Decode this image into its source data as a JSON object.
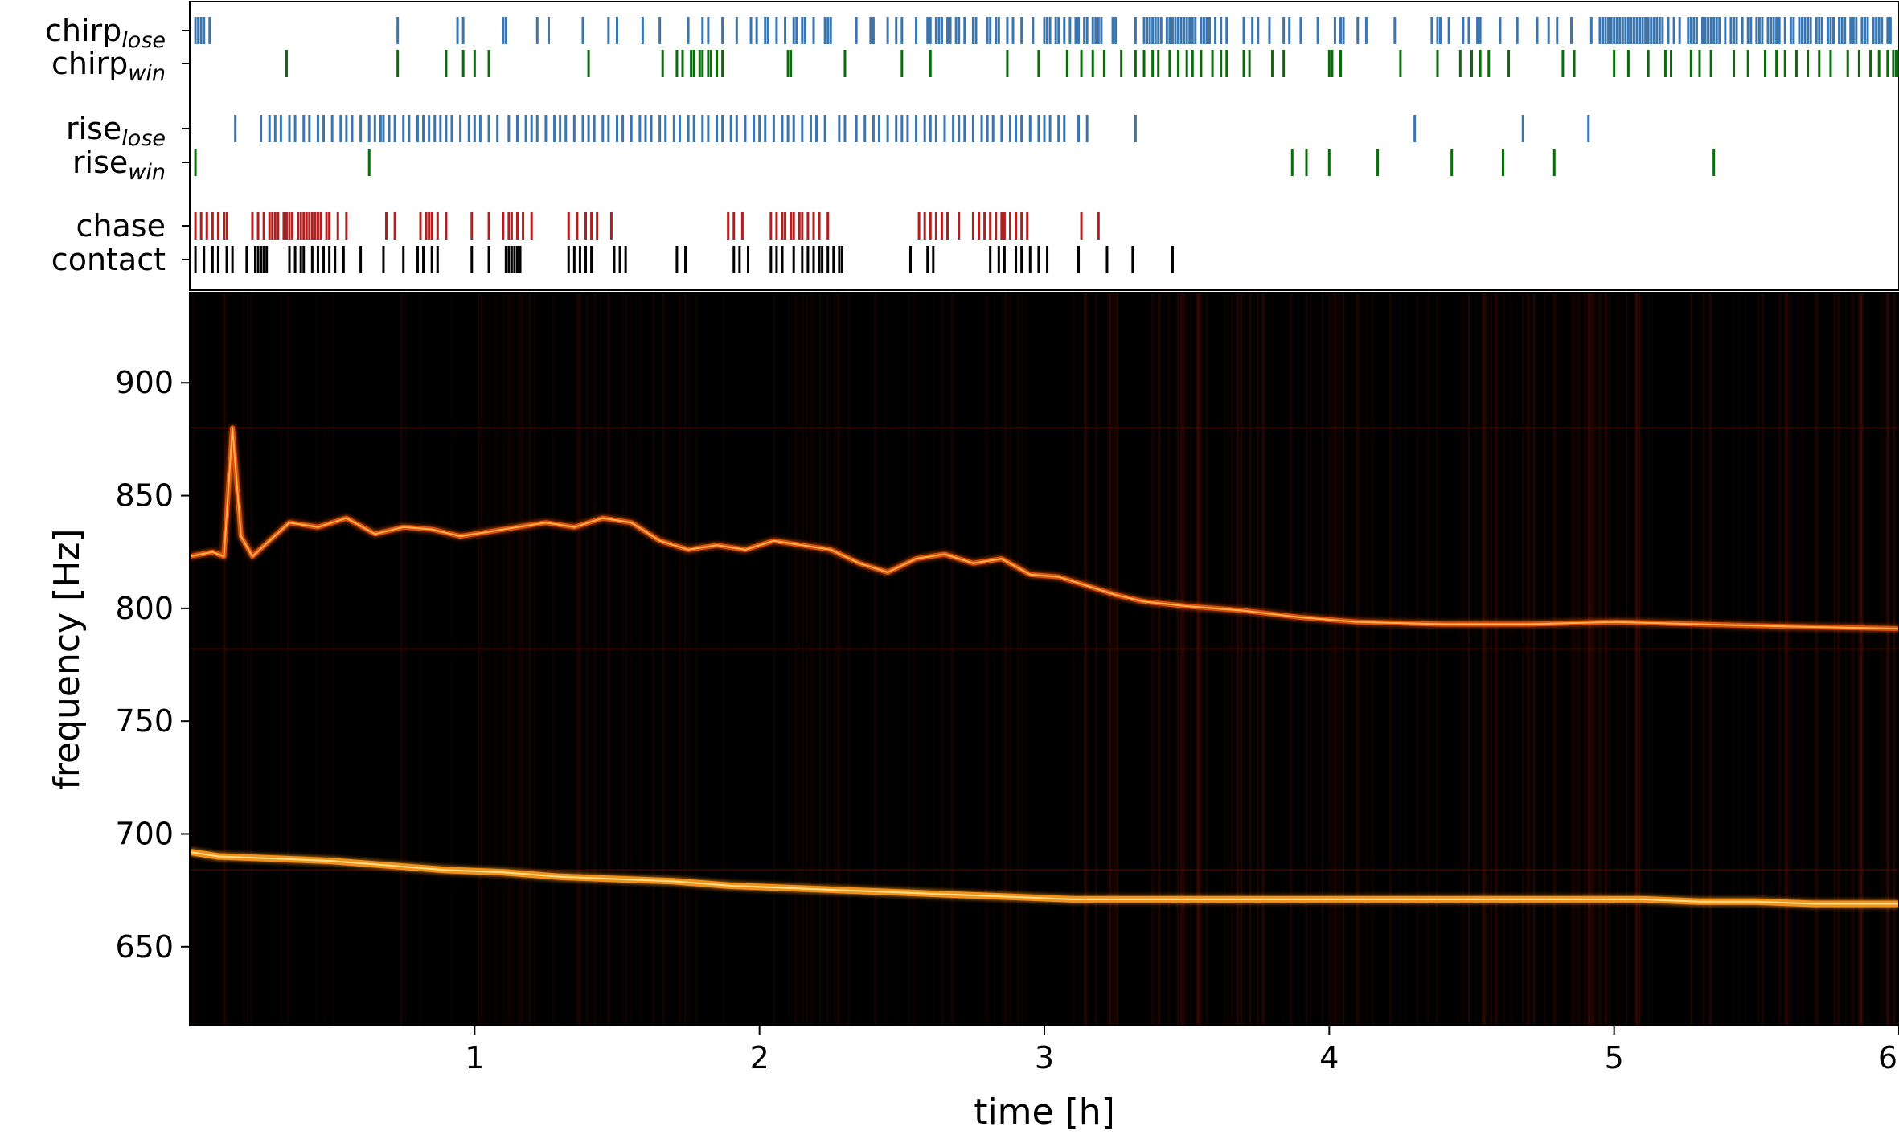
{
  "chart_data": [
    {
      "type": "scatter",
      "subtype": "event-raster",
      "xlim": [
        0,
        6
      ],
      "rows": [
        {
          "label": "chirp",
          "sub": "lose",
          "color": "#3a75b0",
          "events": [
            0.02,
            0.03,
            0.04,
            0.05,
            0.07,
            0.73,
            0.94,
            0.96,
            1.1,
            1.11,
            1.22,
            1.26,
            1.38,
            1.47,
            1.5,
            1.59,
            1.65,
            1.75,
            1.8,
            1.82,
            1.87,
            1.92,
            1.97,
            1.99,
            2.02,
            2.03,
            2.06,
            2.09,
            2.12,
            2.13,
            2.15,
            2.16,
            2.19,
            2.23,
            2.24,
            2.25,
            2.34,
            2.39,
            2.4,
            2.45,
            2.48,
            2.5,
            2.55,
            2.59,
            2.6,
            2.62,
            2.63,
            2.64,
            2.66,
            2.67,
            2.69,
            2.7,
            2.72,
            2.75,
            2.76,
            2.8,
            2.81,
            2.83,
            2.84,
            2.87,
            2.89,
            2.92,
            2.96,
            3.0,
            3.01,
            3.02,
            3.04,
            3.05,
            3.07,
            3.09,
            3.11,
            3.12,
            3.14,
            3.15,
            3.17,
            3.18,
            3.19,
            3.2,
            3.24,
            3.25,
            3.32,
            3.35,
            3.36,
            3.37,
            3.38,
            3.39,
            3.4,
            3.41,
            3.43,
            3.44,
            3.45,
            3.46,
            3.47,
            3.48,
            3.49,
            3.5,
            3.51,
            3.52,
            3.53,
            3.55,
            3.56,
            3.57,
            3.58,
            3.6,
            3.62,
            3.64,
            3.7,
            3.73,
            3.75,
            3.79,
            3.84,
            3.86,
            3.9,
            3.96,
            4.02,
            4.04,
            4.05,
            4.1,
            4.13,
            4.23,
            4.36,
            4.38,
            4.39,
            4.42,
            4.47,
            4.49,
            4.52,
            4.53,
            4.6,
            4.66,
            4.73,
            4.77,
            4.8,
            4.85,
            4.92,
            4.95,
            4.96,
            4.97,
            4.98,
            4.99,
            5.0,
            5.01,
            5.02,
            5.03,
            5.04,
            5.05,
            5.06,
            5.07,
            5.08,
            5.09,
            5.1,
            5.11,
            5.12,
            5.13,
            5.14,
            5.15,
            5.16,
            5.17,
            5.19,
            5.21,
            5.23,
            5.26,
            5.27,
            5.28,
            5.29,
            5.31,
            5.32,
            5.33,
            5.34,
            5.35,
            5.36,
            5.37,
            5.39,
            5.41,
            5.42,
            5.43,
            5.45,
            5.47,
            5.48,
            5.5,
            5.51,
            5.52,
            5.54,
            5.55,
            5.56,
            5.57,
            5.58,
            5.6,
            5.62,
            5.63,
            5.65,
            5.66,
            5.67,
            5.68,
            5.69,
            5.71,
            5.72,
            5.73,
            5.75,
            5.76,
            5.77,
            5.79,
            5.8,
            5.81,
            5.83,
            5.84,
            5.85,
            5.87,
            5.88,
            5.89,
            5.91,
            5.92,
            5.93,
            5.94,
            5.96,
            5.97
          ]
        },
        {
          "label": "chirp",
          "sub": "win",
          "color": "#0a6b0a",
          "events": [
            0.34,
            0.73,
            0.9,
            0.96,
            1.0,
            1.05,
            1.4,
            1.66,
            1.71,
            1.73,
            1.76,
            1.77,
            1.79,
            1.8,
            1.82,
            1.83,
            1.85,
            1.87,
            2.1,
            2.11,
            2.3,
            2.5,
            2.6,
            2.87,
            2.98,
            3.08,
            3.13,
            3.17,
            3.21,
            3.27,
            3.32,
            3.35,
            3.38,
            3.4,
            3.44,
            3.47,
            3.5,
            3.52,
            3.55,
            3.59,
            3.62,
            3.64,
            3.7,
            3.72,
            3.8,
            3.84,
            4.0,
            4.01,
            4.04,
            4.25,
            4.38,
            4.46,
            4.5,
            4.53,
            4.56,
            4.63,
            4.82,
            4.86,
            5.0,
            5.05,
            5.12,
            5.18,
            5.2,
            5.27,
            5.3,
            5.34,
            5.42,
            5.47,
            5.53,
            5.57,
            5.6,
            5.64,
            5.68,
            5.72,
            5.76,
            5.82,
            5.86,
            5.9,
            5.93,
            5.96,
            5.98,
            5.99,
            6.0
          ]
        },
        {
          "label": "rise",
          "sub": "lose",
          "color": "#3a75b0",
          "events": [
            0.16,
            0.25,
            0.28,
            0.3,
            0.32,
            0.35,
            0.37,
            0.4,
            0.42,
            0.45,
            0.47,
            0.5,
            0.53,
            0.55,
            0.57,
            0.6,
            0.63,
            0.65,
            0.67,
            0.68,
            0.7,
            0.72,
            0.75,
            0.77,
            0.8,
            0.82,
            0.84,
            0.86,
            0.88,
            0.9,
            0.92,
            0.95,
            0.98,
            1.0,
            1.02,
            1.05,
            1.08,
            1.12,
            1.15,
            1.18,
            1.2,
            1.22,
            1.25,
            1.28,
            1.3,
            1.32,
            1.35,
            1.38,
            1.4,
            1.42,
            1.45,
            1.47,
            1.5,
            1.52,
            1.55,
            1.58,
            1.6,
            1.62,
            1.65,
            1.67,
            1.7,
            1.72,
            1.75,
            1.77,
            1.8,
            1.82,
            1.85,
            1.87,
            1.9,
            1.92,
            1.95,
            1.98,
            2.0,
            2.02,
            2.05,
            2.08,
            2.1,
            2.12,
            2.15,
            2.18,
            2.2,
            2.23,
            2.28,
            2.3,
            2.34,
            2.37,
            2.4,
            2.42,
            2.45,
            2.48,
            2.5,
            2.52,
            2.55,
            2.58,
            2.6,
            2.62,
            2.65,
            2.68,
            2.7,
            2.72,
            2.75,
            2.78,
            2.8,
            2.82,
            2.85,
            2.88,
            2.9,
            2.92,
            2.95,
            2.98,
            3.0,
            3.02,
            3.05,
            3.07,
            3.12,
            3.15,
            3.32,
            4.3,
            4.68,
            4.91
          ]
        },
        {
          "label": "rise",
          "sub": "win",
          "color": "#0a6b0a",
          "events": [
            0.02,
            0.63,
            3.87,
            3.92,
            4.0,
            4.17,
            4.43,
            4.61,
            4.79,
            5.35
          ]
        },
        {
          "label": "chase",
          "sub": "",
          "color": "#b01e1e",
          "events": [
            0.02,
            0.04,
            0.06,
            0.08,
            0.1,
            0.12,
            0.13,
            0.22,
            0.24,
            0.26,
            0.28,
            0.29,
            0.3,
            0.31,
            0.33,
            0.34,
            0.35,
            0.36,
            0.38,
            0.39,
            0.4,
            0.41,
            0.42,
            0.43,
            0.44,
            0.45,
            0.46,
            0.48,
            0.49,
            0.52,
            0.55,
            0.69,
            0.72,
            0.81,
            0.83,
            0.84,
            0.85,
            0.87,
            0.9,
            0.99,
            1.05,
            1.1,
            1.12,
            1.13,
            1.15,
            1.17,
            1.2,
            1.33,
            1.36,
            1.39,
            1.41,
            1.43,
            1.48,
            1.89,
            1.91,
            1.94,
            2.04,
            2.06,
            2.08,
            2.09,
            2.11,
            2.12,
            2.14,
            2.15,
            2.17,
            2.19,
            2.21,
            2.24,
            2.56,
            2.58,
            2.6,
            2.62,
            2.64,
            2.66,
            2.7,
            2.75,
            2.77,
            2.79,
            2.81,
            2.83,
            2.85,
            2.86,
            2.88,
            2.9,
            2.92,
            2.94,
            3.13,
            3.19
          ]
        },
        {
          "label": "contact",
          "sub": "",
          "color": "#000000",
          "events": [
            0.02,
            0.05,
            0.08,
            0.1,
            0.13,
            0.15,
            0.2,
            0.23,
            0.24,
            0.25,
            0.26,
            0.27,
            0.35,
            0.37,
            0.39,
            0.4,
            0.43,
            0.45,
            0.47,
            0.49,
            0.51,
            0.54,
            0.6,
            0.68,
            0.75,
            0.8,
            0.82,
            0.85,
            0.87,
            0.99,
            1.05,
            1.11,
            1.12,
            1.13,
            1.14,
            1.15,
            1.16,
            1.33,
            1.35,
            1.37,
            1.39,
            1.41,
            1.49,
            1.51,
            1.53,
            1.71,
            1.74,
            1.91,
            1.93,
            1.96,
            2.04,
            2.06,
            2.08,
            2.12,
            2.15,
            2.17,
            2.19,
            2.21,
            2.22,
            2.24,
            2.26,
            2.28,
            2.29,
            2.53,
            2.59,
            2.61,
            2.81,
            2.84,
            2.86,
            2.9,
            2.92,
            2.95,
            2.98,
            3.01,
            3.12,
            3.22,
            3.31,
            3.45
          ]
        }
      ],
      "ylabels": [
        "chirp",
        "chirp",
        "rise",
        "rise",
        "chase",
        "contact"
      ]
    },
    {
      "type": "heatmap",
      "subtype": "spectrogram",
      "xlabel": "time [h]",
      "ylabel": "frequency [Hz]",
      "xlim": [
        0,
        6
      ],
      "ylim": [
        615,
        940
      ],
      "xticks": [
        1,
        2,
        3,
        4,
        5,
        6
      ],
      "yticks": [
        650,
        700,
        750,
        800,
        850,
        900
      ],
      "colormap": "afmhot",
      "traces": [
        {
          "name": "",
          "points": [
            [
              0.0,
              823
            ],
            [
              0.08,
              825
            ],
            [
              0.12,
              823
            ],
            [
              0.15,
              880
            ],
            [
              0.18,
              832
            ],
            [
              0.22,
              823
            ],
            [
              0.28,
              830
            ],
            [
              0.35,
              838
            ],
            [
              0.45,
              836
            ],
            [
              0.55,
              840
            ],
            [
              0.65,
              833
            ],
            [
              0.75,
              836
            ],
            [
              0.85,
              835
            ],
            [
              0.95,
              832
            ],
            [
              1.05,
              834
            ],
            [
              1.15,
              836
            ],
            [
              1.25,
              838
            ],
            [
              1.35,
              836
            ],
            [
              1.45,
              840
            ],
            [
              1.55,
              838
            ],
            [
              1.65,
              830
            ],
            [
              1.75,
              826
            ],
            [
              1.85,
              828
            ],
            [
              1.95,
              826
            ],
            [
              2.05,
              830
            ],
            [
              2.15,
              828
            ],
            [
              2.25,
              826
            ],
            [
              2.35,
              820
            ],
            [
              2.45,
              816
            ],
            [
              2.55,
              822
            ],
            [
              2.65,
              824
            ],
            [
              2.75,
              820
            ],
            [
              2.85,
              822
            ],
            [
              2.95,
              815
            ],
            [
              3.05,
              814
            ],
            [
              3.15,
              810
            ],
            [
              3.25,
              806
            ],
            [
              3.35,
              803
            ],
            [
              3.5,
              801
            ],
            [
              3.7,
              799
            ],
            [
              3.9,
              796
            ],
            [
              4.1,
              794
            ],
            [
              4.4,
              793
            ],
            [
              4.7,
              793
            ],
            [
              5.0,
              794
            ],
            [
              5.3,
              793
            ],
            [
              5.6,
              792
            ],
            [
              6.0,
              791
            ]
          ]
        },
        {
          "name": "",
          "points": [
            [
              0.0,
              692
            ],
            [
              0.1,
              690
            ],
            [
              0.3,
              689
            ],
            [
              0.5,
              688
            ],
            [
              0.7,
              686
            ],
            [
              0.9,
              684
            ],
            [
              1.1,
              683
            ],
            [
              1.3,
              681
            ],
            [
              1.5,
              680
            ],
            [
              1.7,
              679
            ],
            [
              1.9,
              677
            ],
            [
              2.1,
              676
            ],
            [
              2.3,
              675
            ],
            [
              2.5,
              674
            ],
            [
              2.7,
              673
            ],
            [
              2.9,
              672
            ],
            [
              3.1,
              671
            ],
            [
              3.3,
              671
            ],
            [
              3.5,
              671
            ],
            [
              3.7,
              671
            ],
            [
              3.9,
              671
            ],
            [
              4.1,
              671
            ],
            [
              4.3,
              671
            ],
            [
              4.5,
              671
            ],
            [
              4.7,
              671
            ],
            [
              4.9,
              671
            ],
            [
              5.1,
              671
            ],
            [
              5.3,
              670
            ],
            [
              5.5,
              670
            ],
            [
              5.7,
              669
            ],
            [
              6.0,
              669
            ]
          ]
        }
      ]
    }
  ]
}
